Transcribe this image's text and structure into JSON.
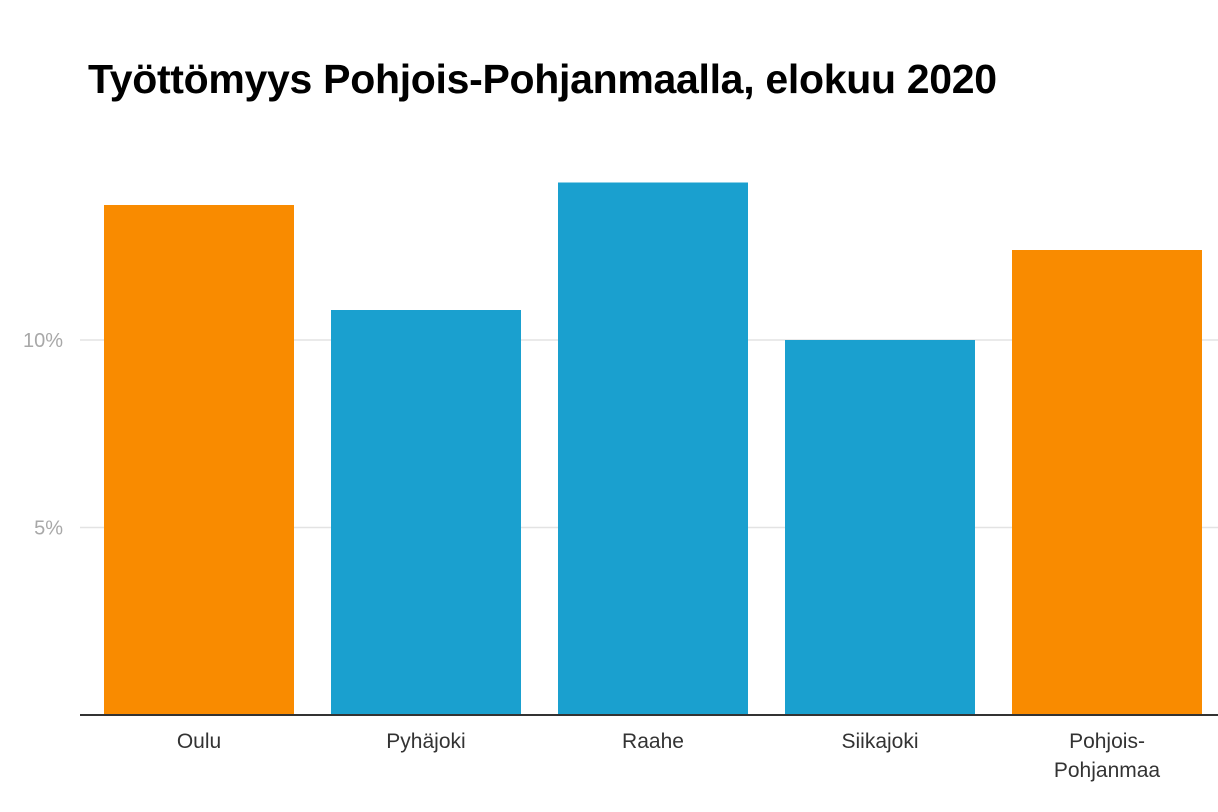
{
  "chart_data": {
    "type": "bar",
    "title": "Työttömyys Pohjois-Pohjanmaalla, elokuu 2020",
    "categories": [
      [
        "Oulu"
      ],
      [
        "Pyhäjoki"
      ],
      [
        "Raahe"
      ],
      [
        "Siikajoki"
      ],
      [
        "Pohjois-",
        "Pohjanmaa"
      ]
    ],
    "values": [
      13.6,
      10.8,
      14.2,
      10.0,
      12.4
    ],
    "unit": "%",
    "ylim": [
      0,
      15
    ],
    "y_ticks": [
      {
        "value": 5,
        "label": "5%"
      },
      {
        "value": 10,
        "label": "10%"
      }
    ],
    "grid": true,
    "colors": [
      "#f98b00",
      "#1aa0cf",
      "#1aa0cf",
      "#1aa0cf",
      "#f98b00"
    ]
  }
}
